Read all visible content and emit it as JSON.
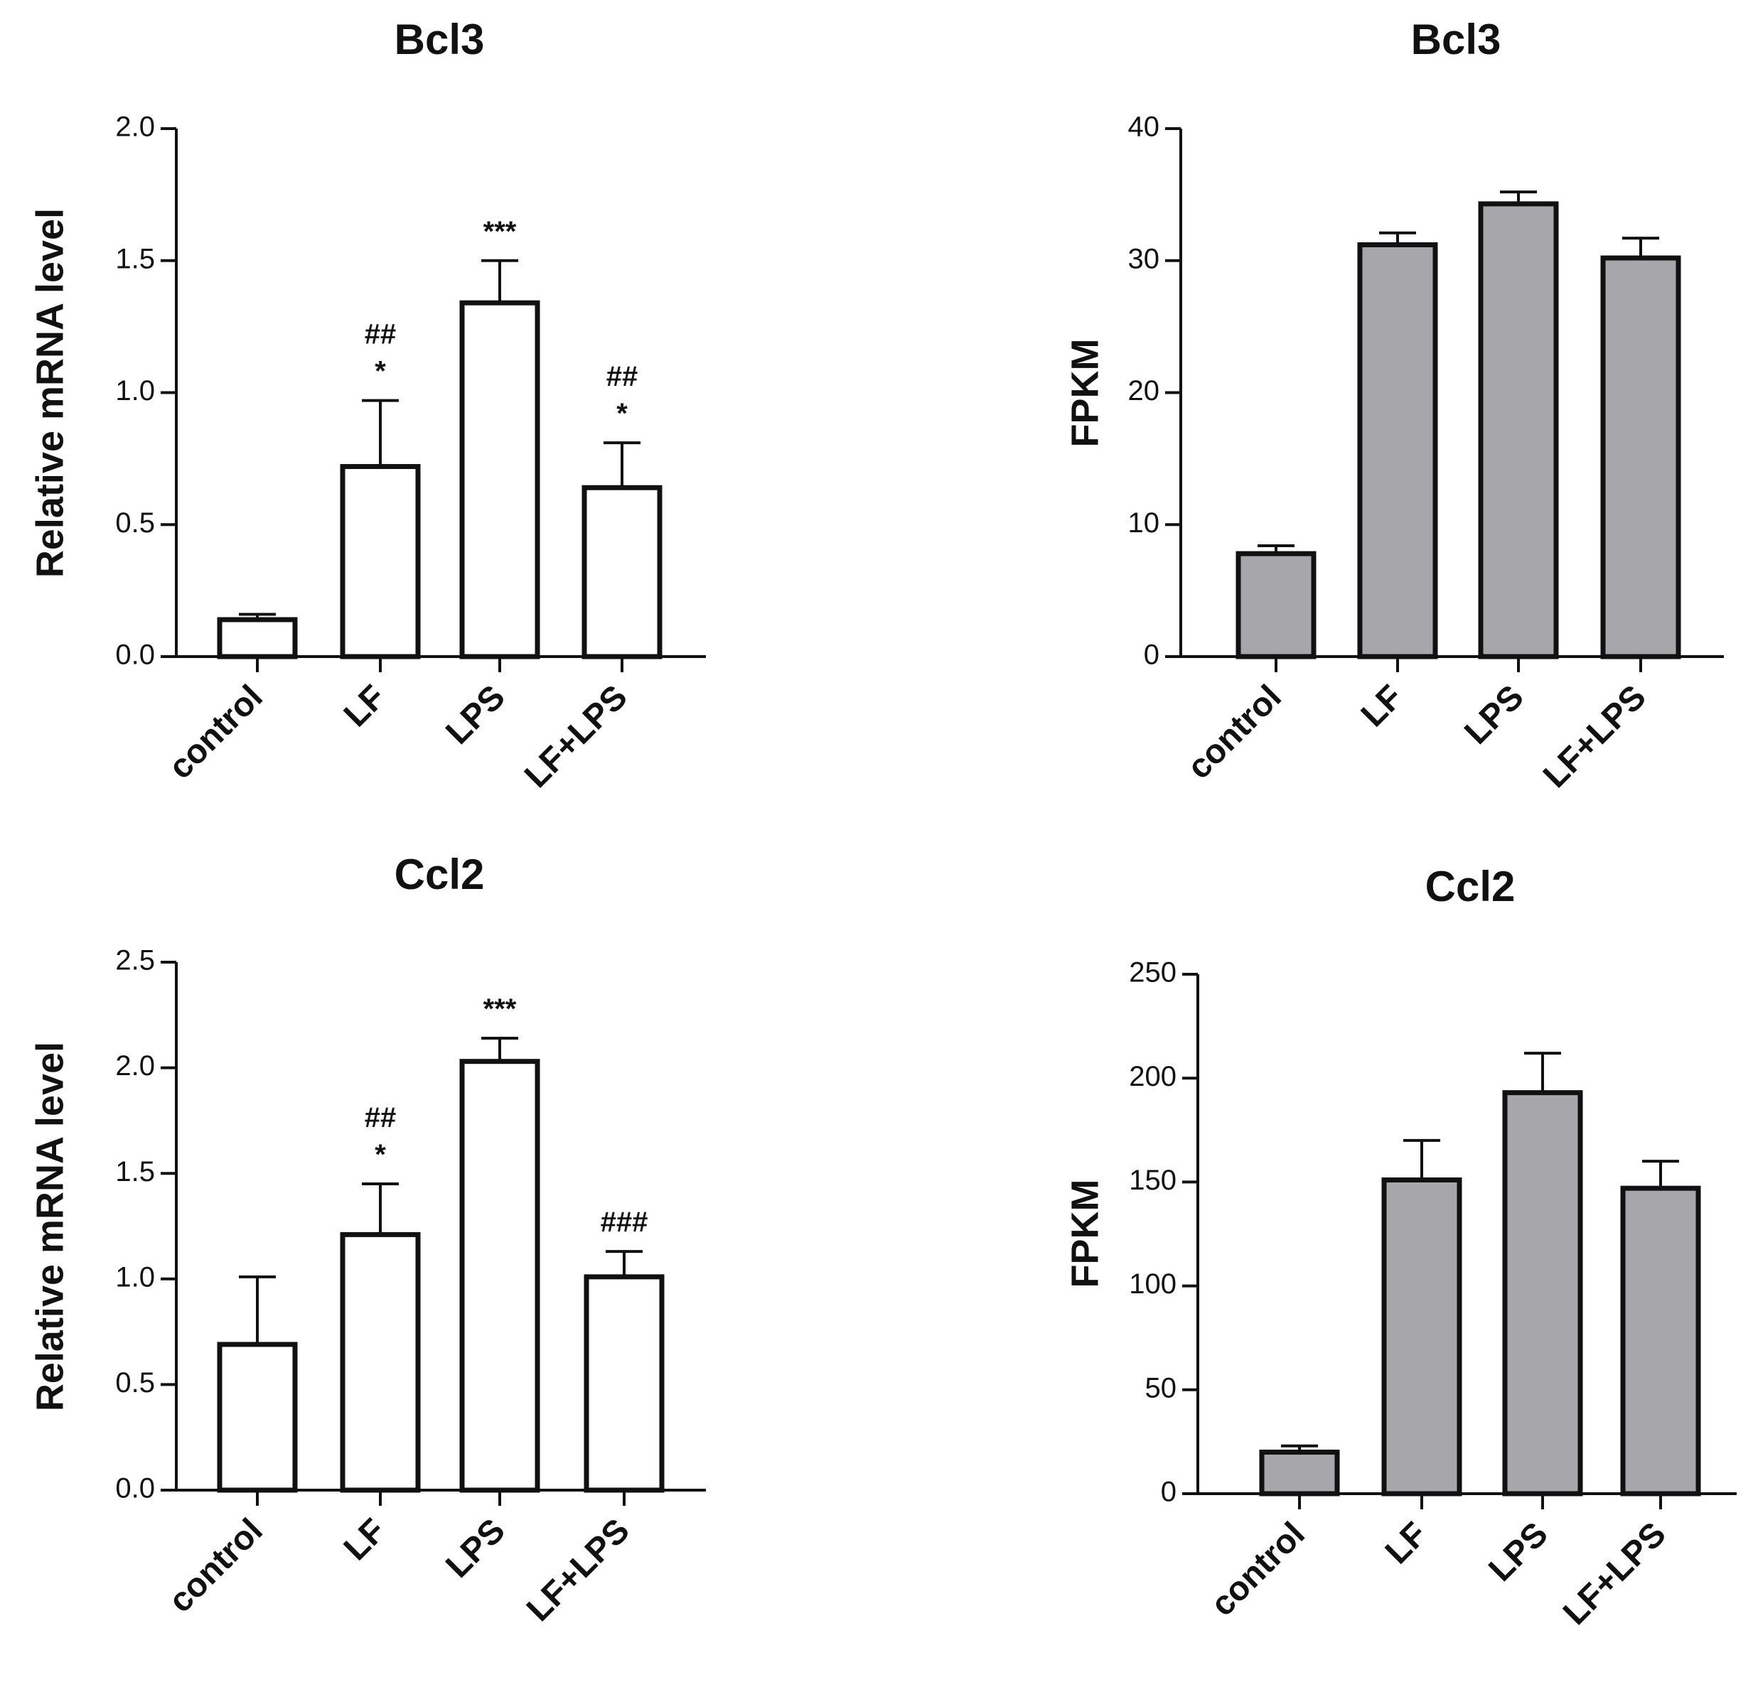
{
  "chart_data": [
    {
      "type": "bar",
      "title": "Bcl3",
      "xlabel": "",
      "ylabel": "Relative mRNA level",
      "ylim": [
        0,
        2.0
      ],
      "yticks": [
        "0.0",
        "0.5",
        "1.0",
        "1.5",
        "2.0"
      ],
      "categories": [
        "control",
        "LF",
        "LPS",
        "LF+LPS"
      ],
      "values": [
        0.14,
        0.72,
        1.34,
        0.64
      ],
      "errors": [
        0.02,
        0.25,
        0.16,
        0.17
      ],
      "fill": "#ffffff",
      "annotations": [
        [],
        [
          "##",
          "*"
        ],
        [
          "***"
        ],
        [
          "##",
          "*"
        ]
      ]
    },
    {
      "type": "bar",
      "title": "Bcl3",
      "xlabel": "",
      "ylabel": "FPKM",
      "ylim": [
        0,
        40
      ],
      "yticks": [
        "0",
        "10",
        "20",
        "30",
        "40"
      ],
      "categories": [
        "control",
        "LF",
        "LPS",
        "LF+LPS"
      ],
      "values": [
        7.8,
        31.2,
        34.3,
        30.2
      ],
      "errors": [
        0.6,
        0.9,
        0.9,
        1.5
      ],
      "fill": "#a7a6ab",
      "annotations": [
        [],
        [],
        [],
        []
      ]
    },
    {
      "type": "bar",
      "title": "Ccl2",
      "xlabel": "",
      "ylabel": "Relative mRNA level",
      "ylim": [
        0,
        2.5
      ],
      "yticks": [
        "0.0",
        "0.5",
        "1.0",
        "1.5",
        "2.0",
        "2.5"
      ],
      "categories": [
        "control",
        "LF",
        "LPS",
        "LF+LPS"
      ],
      "values": [
        0.69,
        1.21,
        2.03,
        1.01
      ],
      "errors": [
        0.32,
        0.24,
        0.11,
        0.12
      ],
      "fill": "#ffffff",
      "annotations": [
        [],
        [
          "##",
          "*"
        ],
        [
          "***"
        ],
        [
          "###"
        ]
      ]
    },
    {
      "type": "bar",
      "title": "Ccl2",
      "xlabel": "",
      "ylabel": "FPKM",
      "ylim": [
        0,
        250
      ],
      "yticks": [
        "0",
        "50",
        "100",
        "150",
        "200",
        "250"
      ],
      "categories": [
        "control",
        "LF",
        "LPS",
        "LF+LPS"
      ],
      "values": [
        20,
        151,
        193,
        147
      ],
      "errors": [
        3,
        19,
        19,
        13
      ],
      "fill": "#a7a6ab",
      "annotations": [
        [],
        [],
        [],
        []
      ]
    }
  ]
}
